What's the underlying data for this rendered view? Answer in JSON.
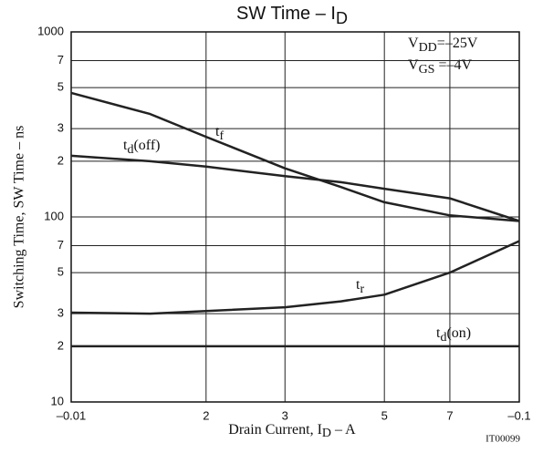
{
  "chart_data": {
    "type": "line",
    "title": {
      "text": "SW Time  –  I",
      "sub": "D"
    },
    "x_label": {
      "text": "Drain Current, I",
      "sub": "D",
      "suffix": "  –  A"
    },
    "y_label": "Switching Time, SW Time  –  ns",
    "conditions": [
      {
        "text": "V",
        "sub": "DD",
        "suffix": "=–25V"
      },
      {
        "text": "V",
        "sub": "GS",
        "suffix": " =–4V"
      }
    ],
    "code": "IT00099",
    "log_x": true,
    "log_y": true,
    "grid": true,
    "x": [
      -0.01,
      -0.015,
      -0.02,
      -0.03,
      -0.04,
      -0.05,
      -0.07,
      -0.1
    ],
    "xlim": [
      -0.01,
      -0.1
    ],
    "xticks": [
      {
        "value": -0.01,
        "label": "–0.01"
      },
      {
        "value": -0.02,
        "label": "2"
      },
      {
        "value": -0.03,
        "label": "3"
      },
      {
        "value": -0.05,
        "label": "5"
      },
      {
        "value": -0.07,
        "label": "7"
      },
      {
        "value": -0.1,
        "label": "–0.1"
      }
    ],
    "ylim": [
      10,
      1000
    ],
    "yticks": [
      10,
      {
        "value": 20,
        "label": "2"
      },
      {
        "value": 30,
        "label": "3"
      },
      {
        "value": 50,
        "label": "5"
      },
      {
        "value": 70,
        "label": "7"
      },
      100,
      {
        "value": 200,
        "label": "2"
      },
      {
        "value": 300,
        "label": "3"
      },
      {
        "value": 500,
        "label": "5"
      },
      {
        "value": 700,
        "label": "7"
      },
      1000
    ],
    "series": [
      {
        "label": {
          "text": "t",
          "sub": "f",
          "suffix": ""
        },
        "color": "#222222",
        "values": [
          468,
          360,
          271,
          183,
          145,
          120,
          102,
          95
        ]
      },
      {
        "label": {
          "text": "t",
          "sub": "d",
          "suffix": "(off)"
        },
        "color": "#222222",
        "values": [
          214,
          200,
          187,
          166,
          154,
          142,
          126,
          95
        ]
      },
      {
        "label": {
          "text": "t",
          "sub": "r",
          "suffix": ""
        },
        "color": "#222222",
        "values": [
          30.4,
          30,
          31,
          32.5,
          35,
          38,
          50,
          74
        ]
      },
      {
        "label": {
          "text": "t",
          "sub": "d",
          "suffix": "(on)"
        },
        "color": "#222222",
        "values": [
          20,
          20,
          20,
          20,
          20,
          20,
          20,
          20
        ]
      }
    ]
  }
}
